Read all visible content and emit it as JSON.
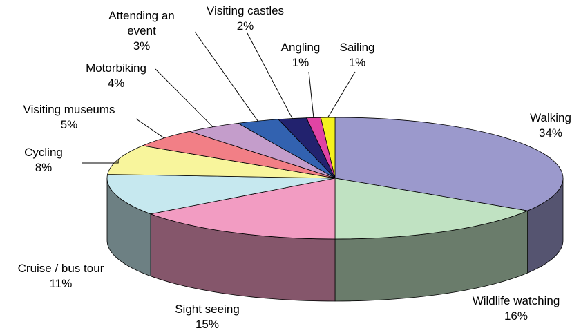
{
  "chart_data": {
    "type": "pie3d",
    "categories": [
      "Walking",
      "Wildlife watching",
      "Sight seeing",
      "Cruise / bus tour",
      "Cycling",
      "Visiting museums",
      "Motorbiking",
      "Attending an event",
      "Visiting castles",
      "Angling",
      "Sailing"
    ],
    "values": [
      34,
      16,
      15,
      11,
      8,
      5,
      4,
      3,
      2,
      1,
      1
    ],
    "value_labels": [
      "34%",
      "16%",
      "15%",
      "11%",
      "8%",
      "5%",
      "4%",
      "3%",
      "2%",
      "1%",
      "1%"
    ],
    "colors": [
      "#9b99cc",
      "#c0e2c2",
      "#f29cc2",
      "#c6e8ef",
      "#f8f59c",
      "#f27f86",
      "#c49dcb",
      "#3262b0",
      "#22226e",
      "#e044a4",
      "#f5f21e"
    ]
  }
}
